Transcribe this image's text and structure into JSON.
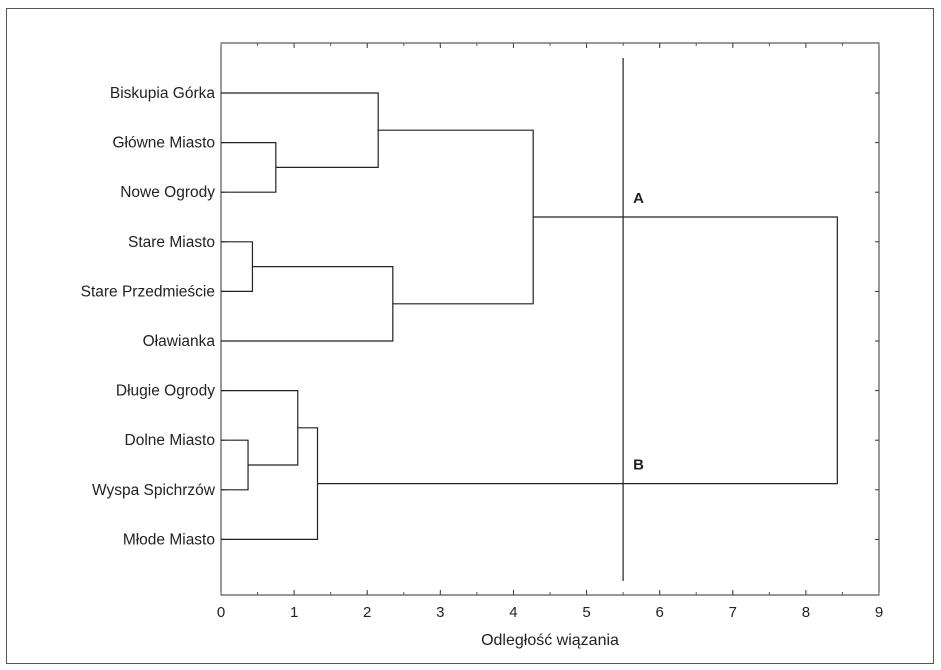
{
  "chart_data": {
    "type": "dendrogram",
    "orientation": "horizontal",
    "xlabel": "Odległość wiązania",
    "xlim": [
      0,
      9
    ],
    "xticks": [
      0,
      1,
      2,
      3,
      4,
      5,
      6,
      7,
      8,
      9
    ],
    "grid": false,
    "leaves": [
      "Biskupia Górka",
      "Główne Miasto",
      "Nowe Ogrody",
      "Stare Miasto",
      "Stare Przedmieście",
      "Oławianka",
      "Długie Ogrody",
      "Dolne Miasto",
      "Wyspa Spichrzów",
      "Młode Miasto"
    ],
    "merges": [
      {
        "id": "m1",
        "children": [
          "Główne Miasto",
          "Nowe Ogrody"
        ],
        "height": 0.75
      },
      {
        "id": "m2",
        "children": [
          "Biskupia Górka",
          "m1"
        ],
        "height": 2.15
      },
      {
        "id": "m3",
        "children": [
          "Stare Miasto",
          "Stare Przedmieście"
        ],
        "height": 0.43
      },
      {
        "id": "m4",
        "children": [
          "m3",
          "Oławianka"
        ],
        "height": 2.35
      },
      {
        "id": "m5",
        "children": [
          "m2",
          "m4"
        ],
        "height": 4.27
      },
      {
        "id": "m6",
        "children": [
          "Dolne Miasto",
          "Wyspa Spichrzów"
        ],
        "height": 0.37
      },
      {
        "id": "m7",
        "children": [
          "Długie Ogrody",
          "m6"
        ],
        "height": 1.05
      },
      {
        "id": "m8",
        "children": [
          "m7",
          "Młode Miasto"
        ],
        "height": 1.32
      },
      {
        "id": "m9",
        "children": [
          "m5",
          "m8"
        ],
        "height": 8.43
      }
    ],
    "cut_line": {
      "x": 5.5
    },
    "annotations": [
      {
        "text": "A",
        "cluster": "m5"
      },
      {
        "text": "B",
        "cluster": "m8"
      }
    ]
  }
}
